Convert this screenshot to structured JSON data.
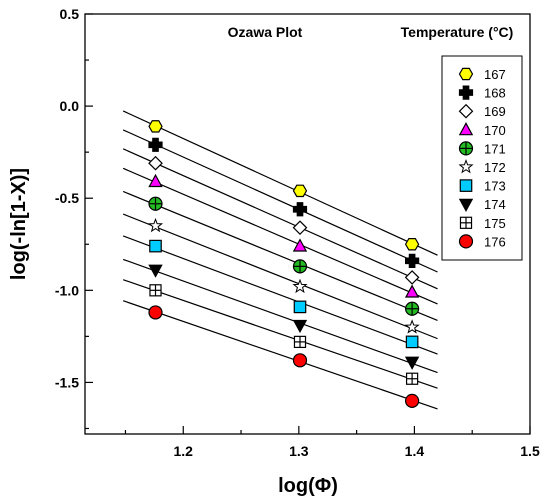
{
  "chart_data": {
    "type": "scatter",
    "annotation": "Ozawa Plot",
    "legend_title": "Temperature (°C)",
    "xlabel": "log(Φ)",
    "ylabel": "log(-ln[1-X)]",
    "xlim": [
      1.115,
      1.5
    ],
    "ylim": [
      -1.78,
      0.5
    ],
    "xticks": [
      1.2,
      1.3,
      1.4,
      1.5
    ],
    "yticks": [
      0.5,
      0.0,
      -0.5,
      -1.0,
      -1.5
    ],
    "xtick_labels": [
      "1.2",
      "1.3",
      "1.4",
      "1.5"
    ],
    "ytick_labels": [
      "0.5",
      "0.0",
      "-0.5",
      "-1.0",
      "-1.5"
    ],
    "legend_position": "top-right",
    "x": [
      1.176,
      1.301,
      1.398
    ],
    "fit_range": [
      1.148,
      1.42
    ],
    "series": [
      {
        "name": "167",
        "marker": "hexagon",
        "fill": "#ffff00",
        "values": [
          -0.11,
          -0.46,
          -0.75
        ]
      },
      {
        "name": "168",
        "marker": "cross",
        "fill": "#000000",
        "values": [
          -0.21,
          -0.56,
          -0.84
        ]
      },
      {
        "name": "169",
        "marker": "diamond",
        "fill": "#ffffff",
        "values": [
          -0.31,
          -0.66,
          -0.93
        ]
      },
      {
        "name": "170",
        "marker": "triangle-up",
        "fill": "#ff00ff",
        "values": [
          -0.41,
          -0.76,
          -1.01
        ]
      },
      {
        "name": "171",
        "marker": "circle-plus",
        "fill": "#22bb22",
        "values": [
          -0.53,
          -0.87,
          -1.1
        ]
      },
      {
        "name": "172",
        "marker": "star",
        "fill": "#ffffff",
        "values": [
          -0.65,
          -0.98,
          -1.2
        ]
      },
      {
        "name": "173",
        "marker": "square",
        "fill": "#00ccff",
        "values": [
          -0.76,
          -1.09,
          -1.28
        ]
      },
      {
        "name": "174",
        "marker": "triangle-down",
        "fill": "#000000",
        "values": [
          -0.89,
          -1.19,
          -1.39
        ]
      },
      {
        "name": "175",
        "marker": "square-plus",
        "fill": "#ffffff",
        "values": [
          -1.0,
          -1.28,
          -1.48
        ]
      },
      {
        "name": "176",
        "marker": "circle",
        "fill": "#ff0000",
        "values": [
          -1.12,
          -1.38,
          -1.6
        ]
      }
    ]
  }
}
